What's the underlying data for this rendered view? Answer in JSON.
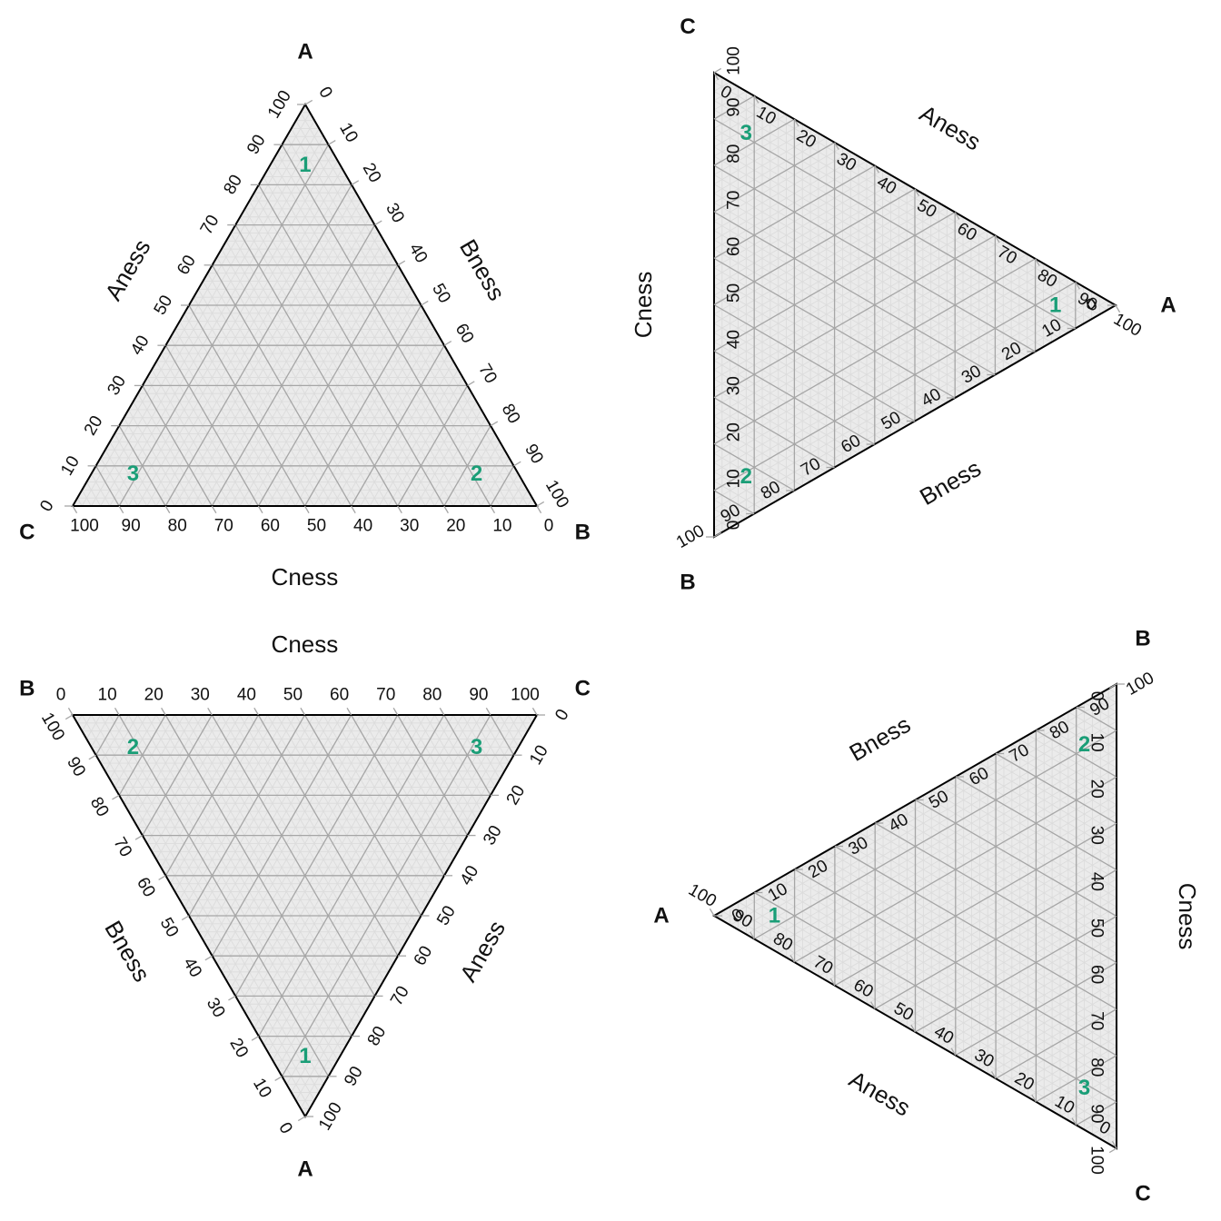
{
  "chart_data": [
    {
      "type": "ternary",
      "orientation": "A-top",
      "corners": {
        "A": "A",
        "B": "B",
        "C": "C"
      },
      "axis_titles": {
        "A": "Aness",
        "B": "Bness",
        "C": "Cness"
      },
      "ticks": [
        0,
        10,
        20,
        30,
        40,
        50,
        60,
        70,
        80,
        90,
        100
      ],
      "points": [
        {
          "label": "1",
          "A": 85,
          "B": 7.5,
          "C": 7.5
        },
        {
          "label": "2",
          "A": 8,
          "B": 83,
          "C": 9
        },
        {
          "label": "3",
          "A": 8,
          "B": 9,
          "C": 83
        }
      ]
    },
    {
      "type": "ternary",
      "orientation": "A-right",
      "corners": {
        "A": "A",
        "B": "B",
        "C": "C"
      },
      "axis_titles": {
        "A": "Aness",
        "B": "Bness",
        "C": "Cness"
      },
      "ticks": [
        0,
        10,
        20,
        30,
        40,
        50,
        60,
        70,
        80,
        90,
        100
      ],
      "points": [
        {
          "label": "1",
          "A": 85,
          "B": 7.5,
          "C": 7.5
        },
        {
          "label": "2",
          "A": 8,
          "B": 83,
          "C": 9
        },
        {
          "label": "3",
          "A": 8,
          "B": 9,
          "C": 83
        }
      ]
    },
    {
      "type": "ternary",
      "orientation": "A-bottom",
      "corners": {
        "A": "A",
        "B": "B",
        "C": "C"
      },
      "axis_titles": {
        "A": "Aness",
        "B": "Bness",
        "C": "Cness"
      },
      "ticks": [
        0,
        10,
        20,
        30,
        40,
        50,
        60,
        70,
        80,
        90,
        100
      ],
      "points": [
        {
          "label": "1",
          "A": 85,
          "B": 7.5,
          "C": 7.5
        },
        {
          "label": "2",
          "A": 8,
          "B": 83,
          "C": 9
        },
        {
          "label": "3",
          "A": 8,
          "B": 9,
          "C": 83
        }
      ]
    },
    {
      "type": "ternary",
      "orientation": "A-left",
      "corners": {
        "A": "A",
        "B": "B",
        "C": "C"
      },
      "axis_titles": {
        "A": "Aness",
        "B": "Bness",
        "C": "Cness"
      },
      "ticks": [
        0,
        10,
        20,
        30,
        40,
        50,
        60,
        70,
        80,
        90,
        100
      ],
      "points": [
        {
          "label": "1",
          "A": 85,
          "B": 7.5,
          "C": 7.5
        },
        {
          "label": "2",
          "A": 8,
          "B": 83,
          "C": 9
        },
        {
          "label": "3",
          "A": 8,
          "B": 9,
          "C": 83
        }
      ]
    }
  ],
  "colors": {
    "frame": "#000000",
    "major_grid": "#a6a6a6",
    "minor_grid": "#dcdcdc",
    "fill": "#ebebeb",
    "point_label": "#1a9e77",
    "text": "#111111"
  }
}
